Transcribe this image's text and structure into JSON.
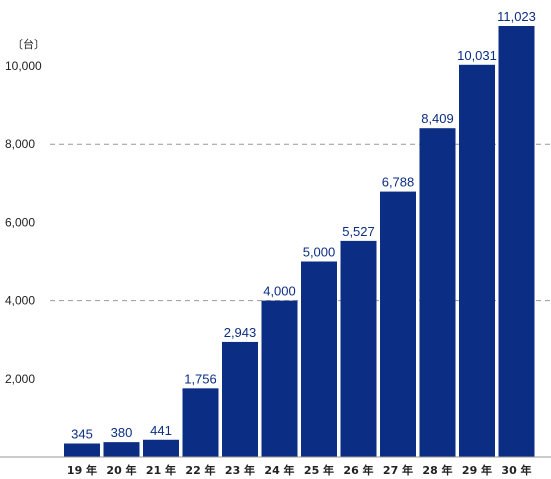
{
  "chart_data": {
    "type": "bar",
    "categories": [
      "19 年",
      "20 年",
      "21 年",
      "22 年",
      "23 年",
      "24 年",
      "25 年",
      "26 年",
      "27 年",
      "28 年",
      "29 年",
      "30 年"
    ],
    "values": [
      345,
      380,
      441,
      1756,
      2943,
      4000,
      5000,
      5527,
      6788,
      8409,
      10031,
      11023
    ],
    "value_labels": [
      "345",
      "380",
      "441",
      "1,756",
      "2,943",
      "4,000",
      "5,000",
      "5,527",
      "6,788",
      "8,409",
      "10,031",
      "11,023"
    ],
    "unit_label": "〔台〕",
    "yticks": [
      2000,
      4000,
      6000,
      8000,
      10000
    ],
    "ytick_labels": [
      "2,000",
      "4,000",
      "6,000",
      "8,000",
      "10,000"
    ],
    "dashed_gridlines": [
      4000,
      8000
    ],
    "ylim": [
      0,
      11023
    ],
    "grid": "dashed at 4,000 and 8,000",
    "legend": "none",
    "bar_color": "#0b2d84",
    "label_color": "#0b2d84",
    "axis_color": "#999999"
  }
}
